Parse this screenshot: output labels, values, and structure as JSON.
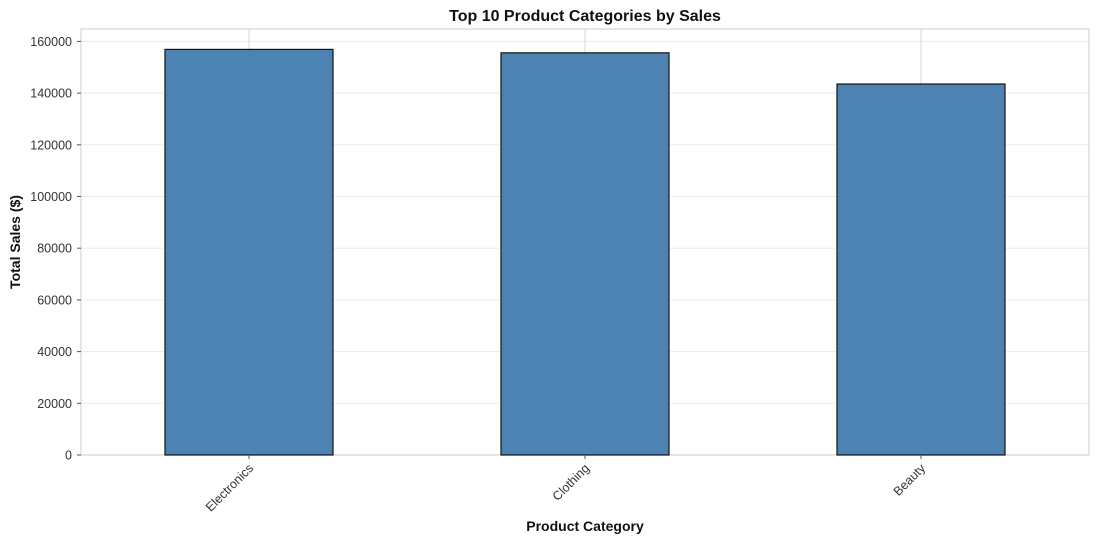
{
  "chart_data": {
    "type": "bar",
    "title": "Top 10 Product Categories by Sales",
    "xlabel": "Product Category",
    "ylabel": "Total Sales ($)",
    "categories": [
      "Electronics",
      "Clothing",
      "Beauty"
    ],
    "values": [
      156905,
      155580,
      143515
    ],
    "ylim": [
      0,
      164800
    ],
    "yticks": [
      "0",
      "20000",
      "40000",
      "60000",
      "80000",
      "100000",
      "120000",
      "140000",
      "160000"
    ],
    "grid": true,
    "bar_color": "#4C83B3",
    "bar_edge_color": "#111111"
  }
}
